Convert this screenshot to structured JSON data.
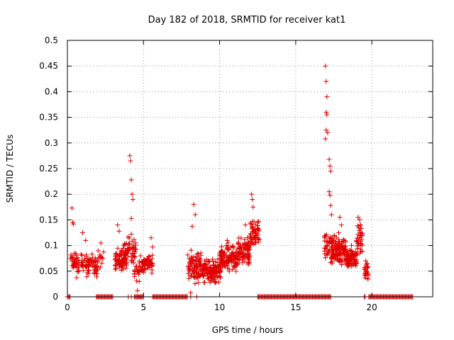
{
  "chart_data": {
    "type": "scatter",
    "title": "Day 182 of 2018, SRMTID for receiver kat1",
    "xlabel": "GPS time / hours",
    "ylabel": "SRMTID / TECUs",
    "xlim": [
      0,
      24
    ],
    "ylim": [
      0,
      0.5
    ],
    "xticks": [
      0,
      5,
      10,
      15,
      20
    ],
    "xtick_labels": [
      "0",
      "5",
      "10",
      "15",
      "20"
    ],
    "yticks": [
      0,
      0.05,
      0.1,
      0.15,
      0.2,
      0.25,
      0.3,
      0.35,
      0.4,
      0.45,
      0.5
    ],
    "ytick_labels": [
      "0",
      "0.05",
      "0.1",
      "0.15",
      "0.2",
      "0.25",
      "0.3",
      "0.35",
      "0.4",
      "0.45",
      "0.5"
    ],
    "grid": true,
    "marker": "+",
    "color": "#e00000",
    "clusters": [
      {
        "x_start": 0.2,
        "x_end": 0.6,
        "y_base": 0.07,
        "y_spread": 0.03,
        "count": 28,
        "peaks": [
          [
            0.3,
            0.173
          ],
          [
            0.35,
            0.145
          ],
          [
            0.4,
            0.142
          ]
        ]
      },
      {
        "x_start": 0.6,
        "x_end": 2.0,
        "y_base": 0.06,
        "y_spread": 0.03,
        "count": 90,
        "peaks": [
          [
            1.0,
            0.125
          ],
          [
            1.2,
            0.11
          ]
        ]
      },
      {
        "x_start": 2.0,
        "x_end": 2.4,
        "y_base": 0.075,
        "y_spread": 0.02,
        "count": 12,
        "peaks": [
          [
            2.2,
            0.105
          ]
        ]
      },
      {
        "x_start": 3.1,
        "x_end": 3.9,
        "y_base": 0.075,
        "y_spread": 0.035,
        "count": 90,
        "peaks": [
          [
            3.3,
            0.14
          ],
          [
            3.4,
            0.128
          ]
        ]
      },
      {
        "x_start": 3.9,
        "x_end": 4.5,
        "y_base": 0.09,
        "y_spread": 0.04,
        "count": 45,
        "peaks": [
          [
            4.1,
            0.275
          ],
          [
            4.15,
            0.265
          ],
          [
            4.2,
            0.228
          ],
          [
            4.25,
            0.2
          ],
          [
            4.3,
            0.19
          ],
          [
            4.2,
            0.153
          ]
        ]
      },
      {
        "x_start": 4.4,
        "x_end": 5.0,
        "y_base": 0.055,
        "y_spread": 0.03,
        "count": 35,
        "peaks": [
          [
            4.6,
            0.012
          ],
          [
            4.8,
            0.08
          ]
        ]
      },
      {
        "x_start": 5.0,
        "x_end": 5.6,
        "y_base": 0.065,
        "y_spread": 0.025,
        "count": 45,
        "peaks": [
          [
            5.5,
            0.115
          ],
          [
            5.6,
            0.097
          ]
        ]
      },
      {
        "x_start": 7.9,
        "x_end": 8.8,
        "y_base": 0.06,
        "y_spread": 0.04,
        "count": 90,
        "peaks": [
          [
            8.3,
            0.18
          ],
          [
            8.4,
            0.16
          ],
          [
            8.2,
            0.137
          ],
          [
            8.1,
            0.008
          ]
        ]
      },
      {
        "x_start": 8.8,
        "x_end": 10.1,
        "y_base": 0.05,
        "y_spread": 0.03,
        "count": 140,
        "peaks": []
      },
      {
        "x_start": 10.0,
        "x_end": 11.2,
        "y_base": 0.075,
        "y_spread": 0.035,
        "count": 120,
        "peaks": [
          [
            10.5,
            0.11
          ]
        ]
      },
      {
        "x_start": 11.2,
        "x_end": 12.0,
        "y_base": 0.085,
        "y_spread": 0.04,
        "count": 80,
        "peaks": [
          [
            11.7,
            0.14
          ]
        ]
      },
      {
        "x_start": 12.0,
        "x_end": 12.6,
        "y_base": 0.12,
        "y_spread": 0.04,
        "count": 55,
        "peaks": [
          [
            12.1,
            0.2
          ],
          [
            12.15,
            0.19
          ],
          [
            12.2,
            0.175
          ],
          [
            12.5,
            0.145
          ]
        ]
      },
      {
        "x_start": 16.8,
        "x_end": 17.3,
        "y_base": 0.1,
        "y_spread": 0.04,
        "count": 30,
        "peaks": [
          [
            16.95,
            0.45
          ],
          [
            17.0,
            0.42
          ],
          [
            17.05,
            0.39
          ],
          [
            17.0,
            0.36
          ],
          [
            17.05,
            0.355
          ],
          [
            17.0,
            0.325
          ],
          [
            17.1,
            0.32
          ],
          [
            16.95,
            0.308
          ],
          [
            17.2,
            0.268
          ],
          [
            17.25,
            0.255
          ],
          [
            17.3,
            0.245
          ],
          [
            17.2,
            0.205
          ],
          [
            17.25,
            0.198
          ],
          [
            17.3,
            0.178
          ],
          [
            17.35,
            0.16
          ]
        ]
      },
      {
        "x_start": 17.3,
        "x_end": 18.3,
        "y_base": 0.09,
        "y_spread": 0.04,
        "count": 130,
        "peaks": [
          [
            17.9,
            0.155
          ],
          [
            18.0,
            0.14
          ]
        ]
      },
      {
        "x_start": 18.3,
        "x_end": 19.0,
        "y_base": 0.075,
        "y_spread": 0.03,
        "count": 80,
        "peaks": []
      },
      {
        "x_start": 19.0,
        "x_end": 19.4,
        "y_base": 0.11,
        "y_spread": 0.04,
        "count": 45,
        "peaks": [
          [
            19.1,
            0.155
          ],
          [
            19.2,
            0.15
          ]
        ]
      },
      {
        "x_start": 19.5,
        "x_end": 19.8,
        "y_base": 0.05,
        "y_spread": 0.025,
        "count": 25,
        "peaks": [
          [
            19.6,
            0.07
          ],
          [
            19.7,
            0.065
          ]
        ]
      }
    ],
    "zero_segments": [
      [
        0.0,
        0.2
      ],
      [
        1.9,
        3.0
      ],
      [
        4.4,
        5.0
      ],
      [
        5.6,
        7.9
      ],
      [
        12.5,
        17.3
      ],
      [
        19.5,
        19.6
      ],
      [
        19.8,
        22.7
      ]
    ],
    "zero_singles": [
      4.0,
      4.2,
      4.7,
      8.1,
      8.5
    ]
  }
}
